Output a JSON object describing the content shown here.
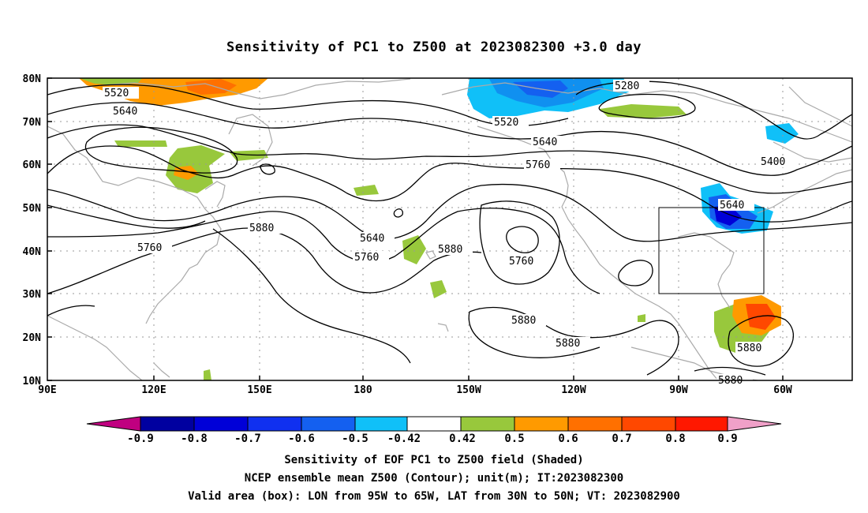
{
  "title": "Sensitivity of PC1 to Z500 at 2023082300 +3.0 day",
  "lat_labels": [
    "80N",
    "70N",
    "60N",
    "50N",
    "40N",
    "30N",
    "20N",
    "10N"
  ],
  "lon_labels": [
    "90E",
    "120E",
    "150E",
    "180",
    "150W",
    "120W",
    "90W",
    "60W"
  ],
  "contour_labels": [
    "5520",
    "5640",
    "5280",
    "5520",
    "5640",
    "5760",
    "5400",
    "5640",
    "5880",
    "5760",
    "5640",
    "5760",
    "5880",
    "5760",
    "5880",
    "5880",
    "5880",
    "5880"
  ],
  "colorbar": {
    "labels": [
      "-0.9",
      "-0.8",
      "-0.7",
      "-0.6",
      "-0.5",
      "-0.42",
      "0.42",
      "0.5",
      "0.6",
      "0.7",
      "0.8",
      "0.9"
    ],
    "colors": [
      "#c00080",
      "#0000a0",
      "#0000d8",
      "#1030f0",
      "#1460f0",
      "#1090f0",
      "#10c0f8",
      "#ffffff",
      "#98c83c",
      "#ff9a00",
      "#ff7000",
      "#ff4800",
      "#ff1800",
      "#f0a0c8"
    ]
  },
  "footer": [
    "Sensitivity of EOF PC1 to Z500 field (Shaded)",
    "NCEP ensemble mean Z500 (Contour); unit(m); IT:2023082300",
    "Valid area (box): LON from 95W to 65W, LAT from 30N to 50N; VT: 2023082900"
  ]
}
